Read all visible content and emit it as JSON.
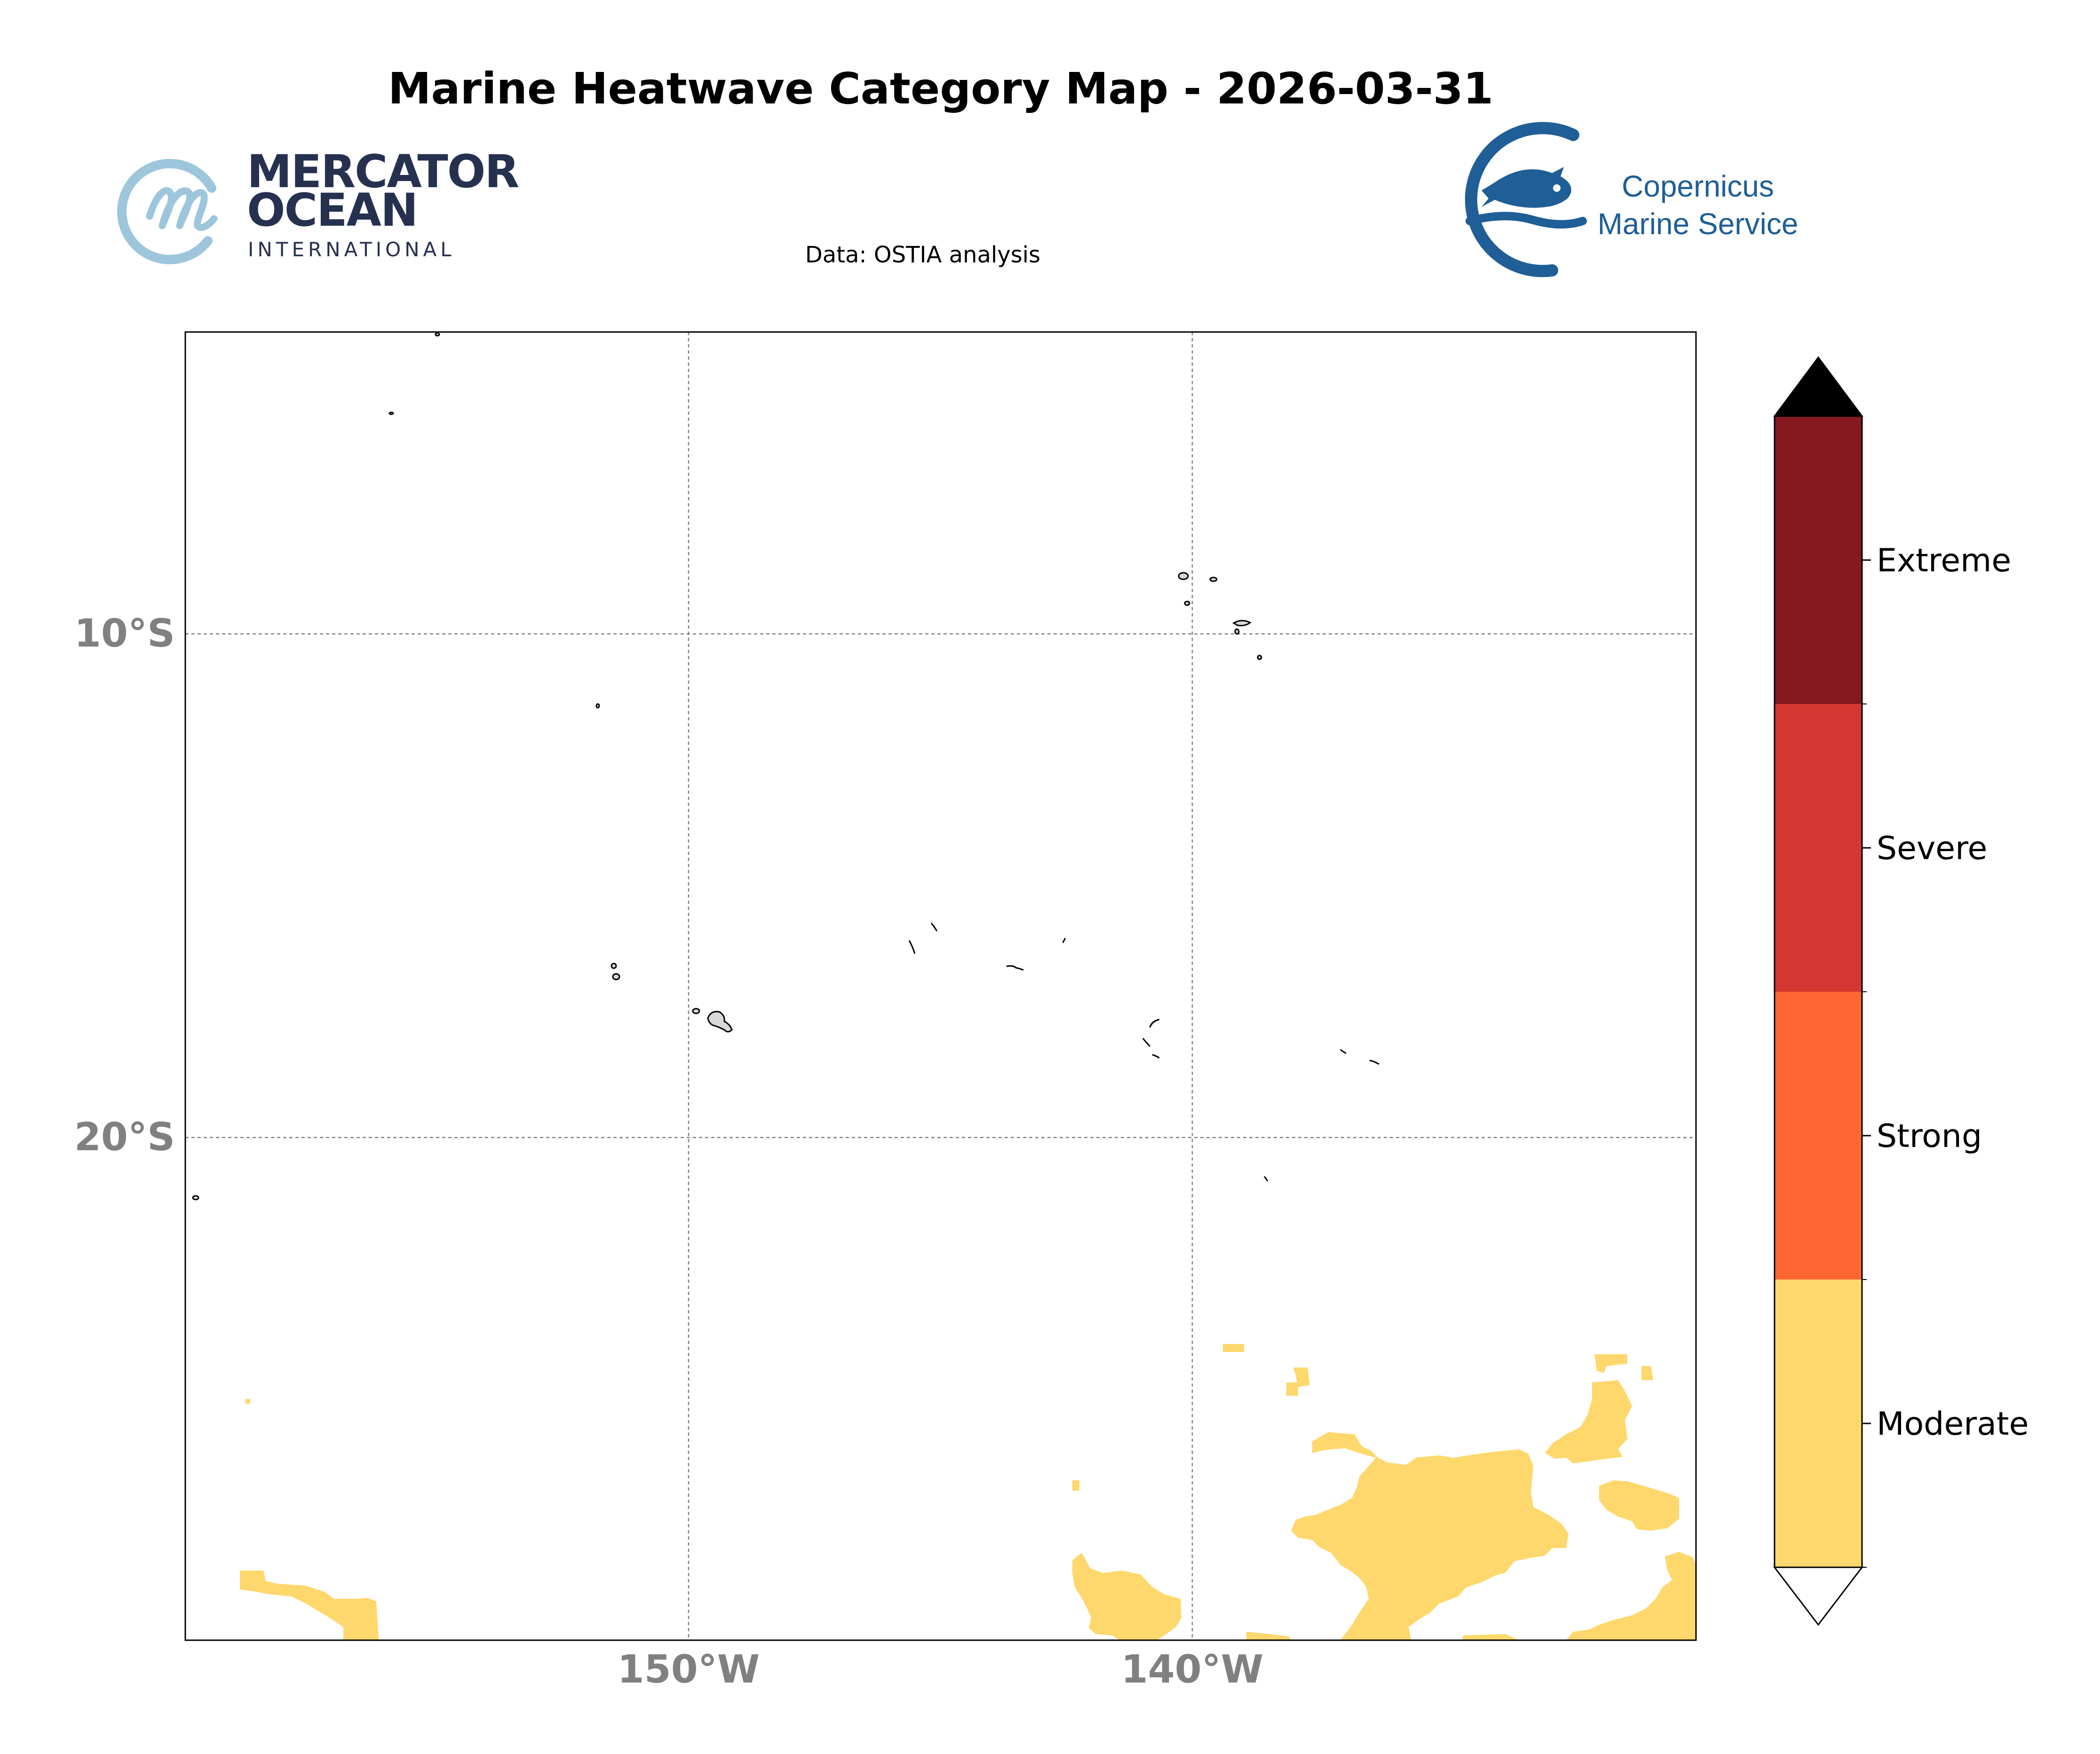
{
  "title": "Marine Heatwave Category Map - 2026-03-31",
  "subtitle": "Data: OSTIA analysis",
  "logos": {
    "mercator": {
      "line1": "MERCATOR",
      "line2": "OCEAN",
      "line3": "INTERNATIONAL",
      "color": "#26304f",
      "icon_color": "#9dc6dd"
    },
    "copernicus": {
      "line1": "Copernicus",
      "line2": "Marine Service",
      "color": "#1f5e96"
    }
  },
  "map": {
    "lat_labels": [
      "10°S",
      "20°S"
    ],
    "lon_labels": [
      "150°W",
      "140°W"
    ],
    "extent": {
      "lon_min": -160,
      "lon_max": -130,
      "lat_min": -30,
      "lat_max": -4
    },
    "grid": true,
    "land_color": "#d9d9d9",
    "heatwave_color": "#fed86c"
  },
  "colorbar": {
    "categories": [
      {
        "label": "Moderate",
        "color": "#fed86c"
      },
      {
        "label": "Strong",
        "color": "#fe6733"
      },
      {
        "label": "Severe",
        "color": "#d23831"
      },
      {
        "label": "Extreme",
        "color": "#86181f"
      }
    ],
    "over_color": "#000000",
    "under_color": "#ffffff"
  }
}
